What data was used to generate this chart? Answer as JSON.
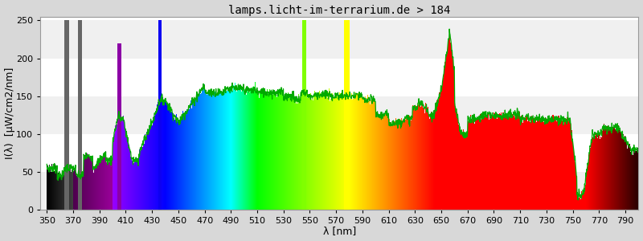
{
  "title": "lamps.licht-im-terrarium.de > 184",
  "xlabel": "λ [nm]",
  "ylabel": "I(λ)  [µW/cm2/nm]",
  "xlim": [
    345,
    800
  ],
  "ylim": [
    0,
    255
  ],
  "yticks": [
    0,
    50,
    100,
    150,
    200,
    250
  ],
  "xticks": [
    350,
    370,
    390,
    410,
    430,
    450,
    470,
    490,
    510,
    530,
    550,
    570,
    590,
    610,
    630,
    650,
    670,
    690,
    710,
    730,
    750,
    770,
    790
  ],
  "background_color": "#d8d8d8",
  "plot_background_top": "#ffffff",
  "plot_background_bottom": "#e0e0e0",
  "grid_color": "#cccccc",
  "title_fontsize": 10,
  "axis_fontsize": 9,
  "tick_fontsize": 8
}
